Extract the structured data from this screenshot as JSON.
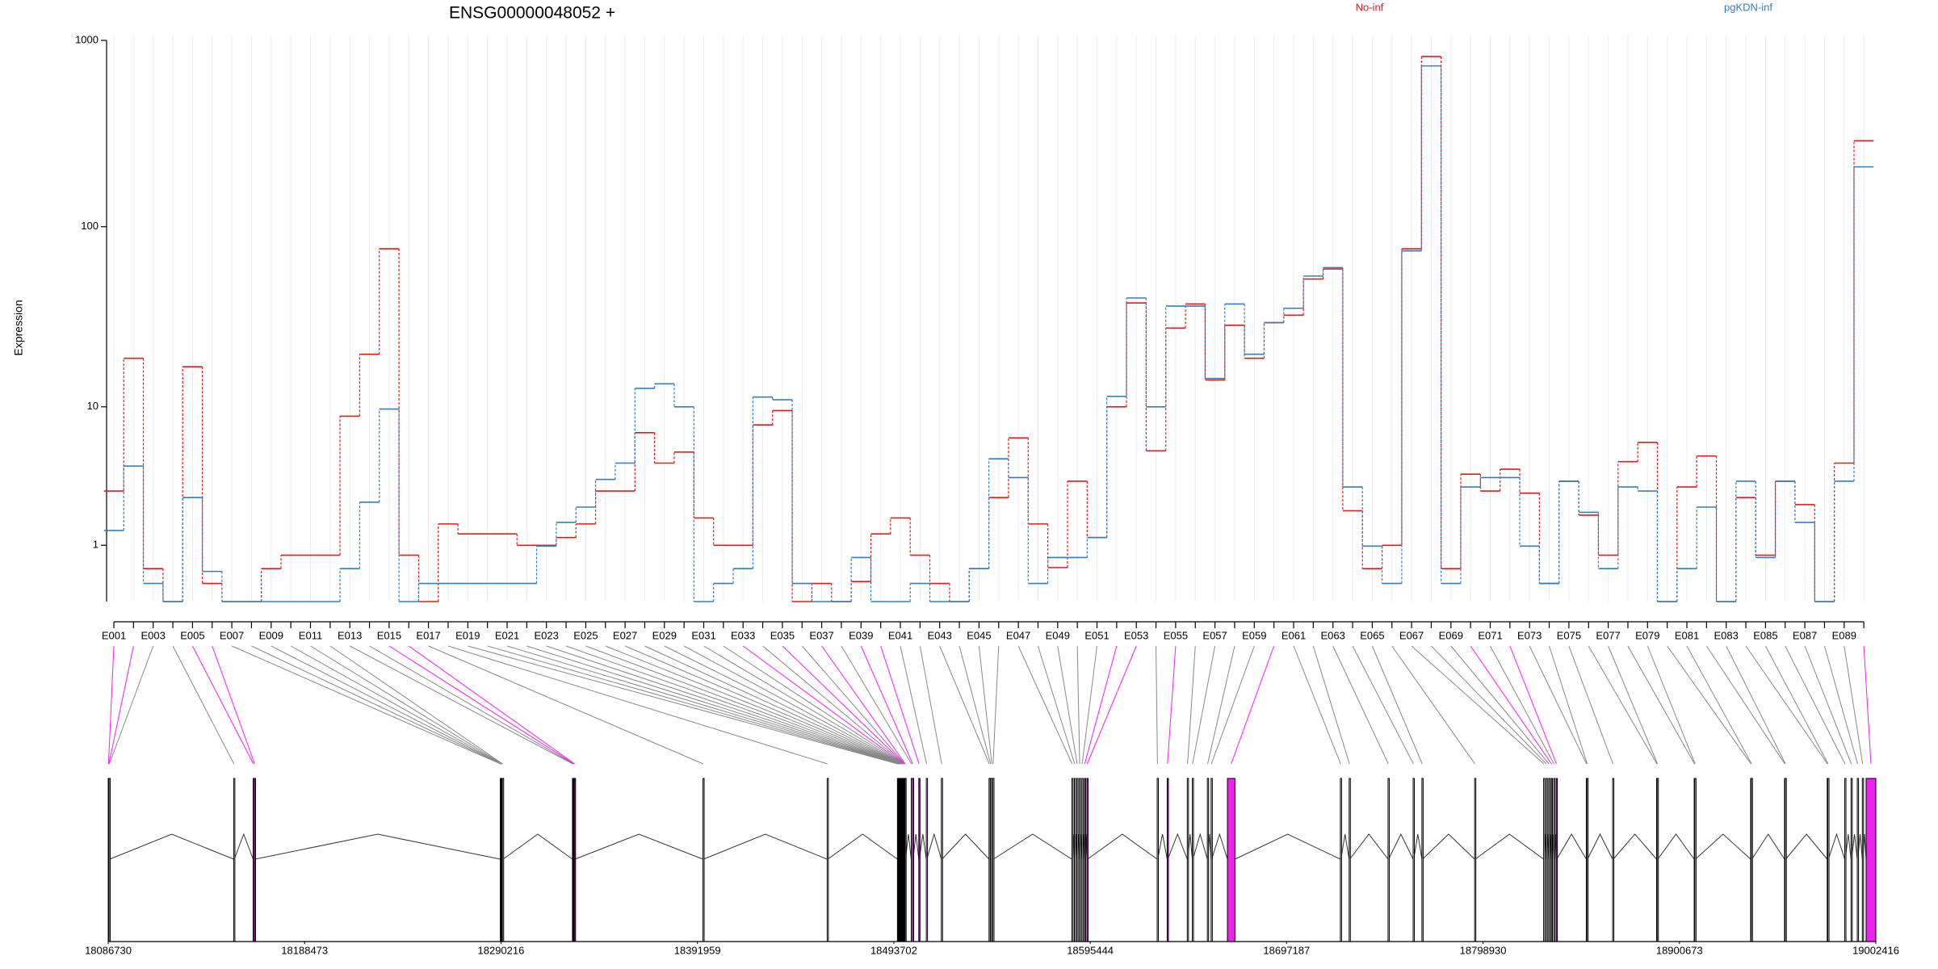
{
  "chart_data": {
    "type": "step",
    "title": "ENSG00000048052 +",
    "y_label": "Expression",
    "yscale": "log10(x+1)",
    "ylim": [
      0,
      1000
    ],
    "yticks": [
      1,
      10,
      100,
      1000
    ],
    "grid": true,
    "categories": [
      "E001",
      null,
      "E003",
      null,
      "E005",
      null,
      "E007",
      null,
      "E009",
      null,
      "E011",
      null,
      "E013",
      null,
      "E015",
      null,
      "E017",
      null,
      "E019",
      null,
      "E021",
      null,
      "E023",
      null,
      "E025",
      null,
      "E027",
      null,
      "E029",
      null,
      "E031",
      null,
      "E033",
      null,
      "E035",
      null,
      "E037",
      null,
      "E039",
      null,
      "E041",
      null,
      "E043",
      null,
      "E045",
      null,
      "E047",
      null,
      "E049",
      null,
      "E051",
      null,
      "E053",
      null,
      "E055",
      null,
      "E057",
      null,
      "E059",
      null,
      "E061",
      null,
      "E063",
      null,
      "E065",
      null,
      "E067",
      null,
      "E069",
      null,
      "E071",
      null,
      "E073",
      null,
      "E075",
      null,
      "E077",
      null,
      "E079",
      null,
      "E081",
      null,
      "E083",
      null,
      "E085",
      null,
      "E087",
      null,
      "E089",
      null
    ],
    "series": [
      {
        "name": "No-inf",
        "color": "#e41a1c",
        "values": [
          2.9,
          19,
          0.5,
          0,
          17,
          0.25,
          0,
          0,
          0.5,
          0.77,
          0.77,
          0.77,
          8.8,
          20,
          76,
          0.77,
          0,
          1.6,
          1.3,
          1.3,
          1.3,
          1.0,
          1.0,
          1.2,
          1.6,
          2.9,
          2.9,
          7.0,
          4.5,
          5.3,
          1.8,
          1.0,
          1.0,
          7.8,
          9.5,
          0,
          0.25,
          0,
          0.28,
          1.3,
          1.8,
          0.77,
          0.25,
          0,
          0.5,
          2.6,
          6.5,
          1.6,
          0.52,
          3.4,
          1.2,
          10,
          38.5,
          5.4,
          28,
          38,
          14.3,
          29,
          19,
          30,
          33,
          52,
          59,
          2.06,
          0.5,
          1.0,
          76,
          820,
          0.5,
          3.8,
          2.9,
          4.1,
          2.8,
          0.25,
          3.4,
          1.9,
          0.77,
          4.6,
          6.1,
          0,
          3.1,
          5.0,
          0,
          2.6,
          0.77,
          3.4,
          2.3,
          0,
          4.5,
          290
        ]
      },
      {
        "name": "pgKDN-inf",
        "color": "#377eb8",
        "values": [
          1.4,
          4.3,
          0.25,
          0,
          2.6,
          0.45,
          0,
          0,
          0,
          0,
          0,
          0,
          0.5,
          2.4,
          9.7,
          0,
          0.25,
          0.25,
          0.25,
          0.25,
          0.25,
          0.25,
          0.98,
          1.65,
          2.2,
          3.5,
          4.5,
          12.8,
          13.6,
          10,
          0,
          0.25,
          0.5,
          11.4,
          11,
          0.25,
          0,
          0,
          0.72,
          0,
          0,
          0.25,
          0,
          0,
          0.5,
          4.8,
          3.6,
          0.25,
          0.72,
          0.72,
          1.2,
          11.5,
          41,
          10,
          37,
          37,
          14.6,
          38,
          20,
          30,
          36,
          54,
          60,
          3.1,
          0.98,
          0.25,
          74,
          730,
          0.25,
          3.1,
          3.6,
          3.6,
          0.98,
          0.25,
          3.4,
          2.0,
          0.5,
          3.1,
          2.9,
          0,
          0.5,
          2.2,
          0,
          3.4,
          0.72,
          3.4,
          1.65,
          0,
          3.4,
          210
        ]
      }
    ],
    "gene_model": {
      "xlim": [
        18086730,
        19002416
      ],
      "xticks": [
        18086730,
        18188473,
        18290216,
        18391959,
        18493702,
        18595444,
        18697187,
        18798930,
        18900673,
        19002416
      ],
      "exon_color": "#ffffff",
      "highlight_color": "#ee22ee",
      "exons": [
        [
          18086730,
          18087030
        ],
        [
          18086925,
          18087225
        ],
        [
          18087185,
          18087485
        ],
        [
          18151730,
          18152030
        ],
        [
          18161805,
          18162105
        ],
        [
          18162455,
          18162755
        ],
        [
          18289855,
          18290155
        ],
        [
          18290180,
          18290480
        ],
        [
          18290375,
          18290675
        ],
        [
          18290570,
          18290870
        ],
        [
          18290765,
          18291065
        ],
        [
          18290960,
          18291260
        ],
        [
          18327230,
          18327530
        ],
        [
          18327555,
          18327855
        ],
        [
          18327880,
          18328180
        ],
        [
          18328205,
          18328505
        ],
        [
          18394830,
          18395130
        ],
        [
          18459180,
          18459480
        ],
        [
          18495580,
          18495880
        ],
        [
          18495905,
          18496205
        ],
        [
          18496230,
          18496530
        ],
        [
          18496425,
          18496725
        ],
        [
          18496620,
          18496920
        ],
        [
          18496815,
          18497115
        ],
        [
          18497010,
          18497310
        ],
        [
          18497205,
          18497505
        ],
        [
          18497400,
          18497700
        ],
        [
          18497595,
          18497895
        ],
        [
          18497790,
          18498090
        ],
        [
          18497985,
          18498285
        ],
        [
          18498180,
          18498480
        ],
        [
          18498375,
          18498675
        ],
        [
          18498570,
          18498870
        ],
        [
          18498830,
          18499130
        ],
        [
          18499025,
          18499325
        ],
        [
          18499220,
          18499520
        ],
        [
          18499480,
          18499780
        ],
        [
          18502730,
          18503030
        ],
        [
          18503380,
          18503680
        ],
        [
          18506630,
          18506930
        ],
        [
          18510530,
          18510830
        ],
        [
          18518330,
          18518630
        ],
        [
          18543030,
          18543330
        ],
        [
          18543680,
          18543980
        ],
        [
          18544330,
          18544630
        ],
        [
          18544980,
          18545280
        ],
        [
          18585930,
          18586230
        ],
        [
          18587230,
          18587530
        ],
        [
          18588530,
          18588830
        ],
        [
          18589830,
          18590130
        ],
        [
          18591130,
          18591430
        ],
        [
          18592430,
          18592730
        ],
        [
          18593730,
          18594030
        ],
        [
          18630130,
          18630430
        ],
        [
          18635330,
          18635630
        ],
        [
          18645730,
          18646030
        ],
        [
          18648330,
          18648630
        ],
        [
          18656130,
          18656430
        ],
        [
          18658080,
          18658380
        ],
        [
          18666530,
          18670430
        ],
        [
          18725030,
          18725330
        ],
        [
          18729580,
          18729880
        ],
        [
          18749730,
          18750030
        ],
        [
          18762730,
          18763030
        ],
        [
          18767280,
          18767580
        ],
        [
          18794580,
          18794880
        ],
        [
          18830330,
          18830630
        ],
        [
          18831630,
          18831930
        ],
        [
          18832930,
          18833230
        ],
        [
          18834230,
          18834530
        ],
        [
          18835530,
          18835830
        ],
        [
          18836830,
          18837130
        ],
        [
          18852430,
          18852730
        ],
        [
          18852755,
          18853055
        ],
        [
          18866080,
          18866380
        ],
        [
          18888830,
          18889130
        ],
        [
          18889155,
          18889455
        ],
        [
          18908330,
          18908630
        ],
        [
          18908655,
          18908955
        ],
        [
          18937580,
          18937880
        ],
        [
          18937905,
          18938205
        ],
        [
          18955130,
          18955430
        ],
        [
          18955455,
          18955755
        ],
        [
          18977230,
          18977530
        ],
        [
          18977555,
          18977855
        ],
        [
          18986330,
          18986630
        ],
        [
          18989580,
          18989880
        ],
        [
          18992830,
          18993130
        ],
        [
          18995430,
          18995730
        ],
        [
          18997380,
          19002416
        ]
      ],
      "significant": [
        true,
        true,
        false,
        false,
        true,
        true,
        false,
        false,
        false,
        false,
        false,
        false,
        false,
        false,
        true,
        true,
        false,
        false,
        false,
        false,
        false,
        false,
        false,
        false,
        false,
        false,
        false,
        false,
        false,
        false,
        false,
        false,
        true,
        false,
        true,
        false,
        true,
        false,
        true,
        true,
        false,
        false,
        false,
        false,
        false,
        false,
        false,
        false,
        false,
        false,
        false,
        true,
        true,
        false,
        true,
        false,
        false,
        false,
        false,
        true,
        false,
        false,
        false,
        false,
        false,
        false,
        false,
        false,
        false,
        true,
        false,
        true,
        false,
        false,
        false,
        false,
        false,
        false,
        false,
        false,
        false,
        false,
        false,
        false,
        false,
        false,
        false,
        false,
        false,
        true
      ]
    }
  }
}
